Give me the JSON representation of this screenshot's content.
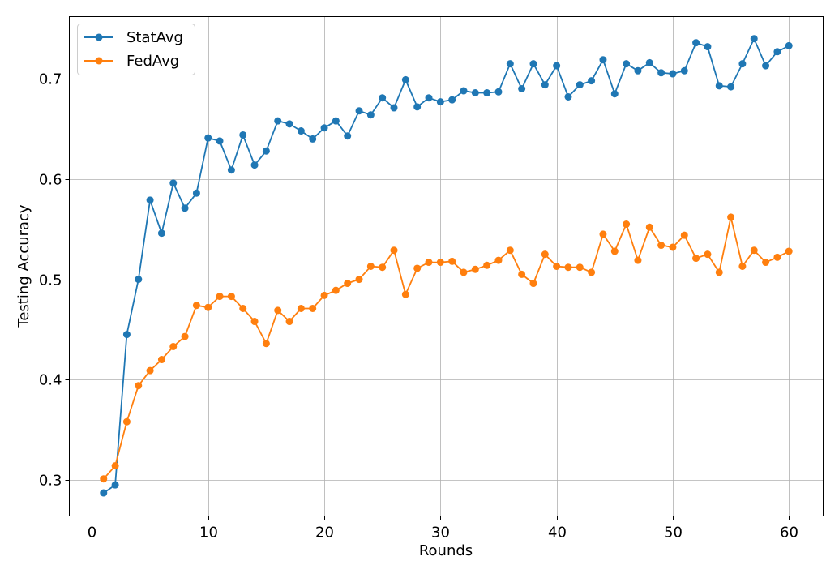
{
  "chart_data": {
    "type": "line",
    "title": "",
    "xlabel": "Rounds",
    "ylabel": "Testing Accuracy",
    "xlim": [
      -1.95,
      62.95
    ],
    "ylim": [
      0.264,
      0.762
    ],
    "xticks": [
      0,
      10,
      20,
      30,
      40,
      50,
      60
    ],
    "xtick_labels": [
      "0",
      "10",
      "20",
      "30",
      "40",
      "50",
      "60"
    ],
    "yticks": [
      0.3,
      0.4,
      0.5,
      0.6,
      0.7
    ],
    "ytick_labels": [
      "0.3",
      "0.4",
      "0.5",
      "0.6",
      "0.7"
    ],
    "grid": true,
    "legend_position": "top-left",
    "x": [
      1,
      2,
      3,
      4,
      5,
      6,
      7,
      8,
      9,
      10,
      11,
      12,
      13,
      14,
      15,
      16,
      17,
      18,
      19,
      20,
      21,
      22,
      23,
      24,
      25,
      26,
      27,
      28,
      29,
      30,
      31,
      32,
      33,
      34,
      35,
      36,
      37,
      38,
      39,
      40,
      41,
      42,
      43,
      44,
      45,
      46,
      47,
      48,
      49,
      50,
      51,
      52,
      53,
      54,
      55,
      56,
      57,
      58,
      59,
      60
    ],
    "series": [
      {
        "name": "StatAvg",
        "color": "#1f77b4",
        "values": [
          0.287,
          0.295,
          0.445,
          0.5,
          0.579,
          0.546,
          0.596,
          0.571,
          0.586,
          0.641,
          0.638,
          0.609,
          0.644,
          0.614,
          0.628,
          0.658,
          0.655,
          0.648,
          0.64,
          0.651,
          0.658,
          0.643,
          0.668,
          0.664,
          0.681,
          0.671,
          0.699,
          0.672,
          0.681,
          0.677,
          0.679,
          0.688,
          0.686,
          0.686,
          0.687,
          0.715,
          0.69,
          0.715,
          0.694,
          0.713,
          0.682,
          0.694,
          0.698,
          0.719,
          0.685,
          0.715,
          0.708,
          0.716,
          0.706,
          0.705,
          0.708,
          0.736,
          0.732,
          0.693,
          0.692,
          0.715,
          0.74,
          0.713,
          0.727,
          0.733
        ]
      },
      {
        "name": "FedAvg",
        "color": "#ff7f0e",
        "values": [
          0.301,
          0.314,
          0.358,
          0.394,
          0.409,
          0.42,
          0.433,
          0.443,
          0.474,
          0.472,
          0.483,
          0.483,
          0.471,
          0.458,
          0.436,
          0.469,
          0.458,
          0.471,
          0.471,
          0.484,
          0.489,
          0.496,
          0.5,
          0.513,
          0.512,
          0.529,
          0.485,
          0.511,
          0.517,
          0.517,
          0.518,
          0.507,
          0.51,
          0.514,
          0.519,
          0.529,
          0.505,
          0.496,
          0.525,
          0.513,
          0.512,
          0.512,
          0.507,
          0.545,
          0.528,
          0.555,
          0.519,
          0.552,
          0.534,
          0.532,
          0.544,
          0.521,
          0.525,
          0.507,
          0.562,
          0.513,
          0.529,
          0.517,
          0.522,
          0.528
        ]
      }
    ]
  }
}
